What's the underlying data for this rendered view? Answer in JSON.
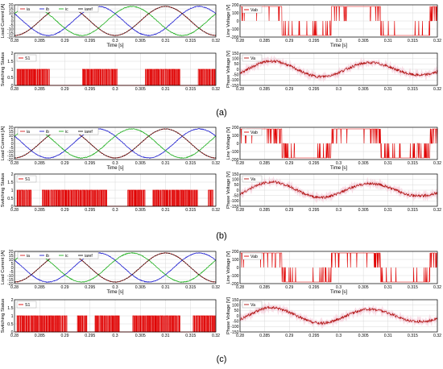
{
  "chart_data": [
    {
      "id": "a-current",
      "type": "line",
      "ylabel": "Load Current [A]",
      "xlabel": "Time [s]",
      "xlim": [
        0.28,
        0.32
      ],
      "ylim": [
        -20,
        20
      ],
      "yticks": [
        "20",
        "15",
        "10",
        "5",
        "0",
        "-5",
        "-10",
        "-15",
        "-20"
      ],
      "xticks": [
        "0.28",
        "0.285",
        "0.29",
        "0.295",
        "0.3",
        "0.305",
        "0.31",
        "0.315",
        "0.32"
      ],
      "legend": [
        "ia",
        "ib",
        "ic",
        "iaref"
      ],
      "legend_position": "top",
      "grid": true,
      "amplitude": 18,
      "frequency_hz": 50,
      "series": [
        {
          "name": "ia",
          "color": "#d62020",
          "phase_deg": 0
        },
        {
          "name": "ib",
          "color": "#2020d0",
          "phase_deg": -120
        },
        {
          "name": "ic",
          "color": "#20b020",
          "phase_deg": 120
        },
        {
          "name": "iaref",
          "color": "#202020",
          "phase_deg": 0
        }
      ]
    },
    {
      "id": "a-vab",
      "type": "line",
      "ylabel": "Line Voltage [V]",
      "xlabel": "Time [s]",
      "xlim": [
        0.28,
        0.32
      ],
      "ylim": [
        -200,
        200
      ],
      "yticks": [
        "200",
        "100",
        "0",
        "-100",
        "-200"
      ],
      "xticks": [
        "0.28",
        "0.285",
        "0.29",
        "0.295",
        "0.3",
        "0.305",
        "0.31",
        "0.315",
        "0.32"
      ],
      "legend": [
        "Vab"
      ],
      "legend_position": "top-left",
      "grid": true,
      "color": "#e00000",
      "levels": [
        -180,
        0,
        180
      ],
      "switching_density": 0.25
    },
    {
      "id": "a-s1",
      "type": "line",
      "ylabel": "Switching Status",
      "xlabel": "",
      "xlim": [
        0.28,
        0.32
      ],
      "ylim": [
        0,
        2
      ],
      "yticks": [
        "2",
        "1.5",
        "1",
        "0.5",
        "0"
      ],
      "xticks": [
        "0.28",
        "0.285",
        "0.29",
        "0.295",
        "0.3",
        "0.305",
        "0.31",
        "0.315",
        "0.32"
      ],
      "legend": [
        "S1"
      ],
      "legend_position": "top-left",
      "grid": true,
      "color": "#e00000",
      "active_intervals": [
        [
          0.2805,
          0.287
        ],
        [
          0.2935,
          0.3005
        ],
        [
          0.306,
          0.313
        ],
        [
          0.3165,
          0.32
        ]
      ]
    },
    {
      "id": "a-va",
      "type": "line",
      "ylabel": "Phase Voltage [V]",
      "xlabel": "",
      "xlim": [
        0.28,
        0.32
      ],
      "ylim": [
        -150,
        150
      ],
      "yticks": [
        "150",
        "100",
        "50",
        "0",
        "-50",
        "-100",
        "-150"
      ],
      "xticks": [
        "0.28",
        "0.285",
        "0.29",
        "0.295",
        "0.3",
        "0.305",
        "0.31",
        "0.315",
        "0.32"
      ],
      "legend": [
        "Va"
      ],
      "legend_position": "top-left",
      "grid": true,
      "color": "#b01010",
      "amplitude": 80
    },
    {
      "id": "b-current",
      "type": "line",
      "ylabel": "Load Current [A]",
      "xlabel": "Time [s]",
      "xlim": [
        0.28,
        0.32
      ],
      "ylim": [
        -20,
        20
      ],
      "yticks": [
        "20",
        "15",
        "10",
        "5",
        "0",
        "-5",
        "-10",
        "-15",
        "-20"
      ],
      "xticks": [
        "0.28",
        "0.285",
        "0.29",
        "0.295",
        "0.3",
        "0.305",
        "0.31",
        "0.315",
        "0.32"
      ],
      "legend": [
        "ia",
        "ib",
        "ic",
        "iaref"
      ],
      "legend_position": "top",
      "grid": true,
      "amplitude": 18,
      "frequency_hz": 50,
      "series": [
        {
          "name": "ia",
          "color": "#d62020",
          "phase_deg": 0
        },
        {
          "name": "ib",
          "color": "#2020d0",
          "phase_deg": -120
        },
        {
          "name": "ic",
          "color": "#20b020",
          "phase_deg": 120
        },
        {
          "name": "iaref",
          "color": "#202020",
          "phase_deg": 0
        }
      ]
    },
    {
      "id": "b-vab",
      "type": "line",
      "ylabel": "Line Voltage [V]",
      "xlabel": "Time [s]",
      "xlim": [
        0.28,
        0.32
      ],
      "ylim": [
        -200,
        200
      ],
      "yticks": [
        "200",
        "100",
        "0",
        "-100",
        "-200"
      ],
      "xticks": [
        "0.28",
        "0.285",
        "0.29",
        "0.295",
        "0.3",
        "0.305",
        "0.31",
        "0.315",
        "0.32"
      ],
      "legend": [
        "Vab"
      ],
      "legend_position": "top-left",
      "grid": true,
      "color": "#e00000",
      "levels": [
        -180,
        0,
        180
      ],
      "switching_density": 0.55
    },
    {
      "id": "b-s1",
      "type": "line",
      "ylabel": "Switching Status",
      "xlabel": "",
      "xlim": [
        0.28,
        0.32
      ],
      "ylim": [
        0,
        2
      ],
      "yticks": [
        "2",
        "1.5",
        "1",
        "0.5",
        "0"
      ],
      "xticks": [
        "0.28",
        "0.285",
        "0.29",
        "0.295",
        "0.3",
        "0.305",
        "0.31",
        "0.315",
        "0.32"
      ],
      "legend": [
        "S1"
      ],
      "legend_position": "top-left",
      "grid": true,
      "color": "#e00000",
      "active_intervals": [
        [
          0.2805,
          0.2835
        ],
        [
          0.2855,
          0.2985
        ],
        [
          0.3025,
          0.306
        ],
        [
          0.3075,
          0.3165
        ],
        [
          0.3185,
          0.3195
        ]
      ]
    },
    {
      "id": "b-va",
      "type": "line",
      "ylabel": "Phase Voltage [V]",
      "xlabel": "",
      "xlim": [
        0.28,
        0.32
      ],
      "ylim": [
        -150,
        150
      ],
      "yticks": [
        "150",
        "100",
        "50",
        "0",
        "-50",
        "-100",
        "-150"
      ],
      "xticks": [
        "0.28",
        "0.285",
        "0.29",
        "0.295",
        "0.3",
        "0.305",
        "0.31",
        "0.315",
        "0.32"
      ],
      "legend": [
        "Va"
      ],
      "legend_position": "top-left",
      "grid": true,
      "color": "#b01010",
      "amplitude": 80
    },
    {
      "id": "c-current",
      "type": "line",
      "ylabel": "Load Current [A]",
      "xlabel": "Time [s]",
      "xlim": [
        0.28,
        0.32
      ],
      "ylim": [
        -20,
        20
      ],
      "yticks": [
        "20",
        "15",
        "10",
        "5",
        "0",
        "-5",
        "-10",
        "-15",
        "-20"
      ],
      "xticks": [
        "0.28",
        "0.285",
        "0.29",
        "0.295",
        "0.3",
        "0.305",
        "0.31",
        "0.315",
        "0.32"
      ],
      "legend": [
        "ia",
        "ib",
        "ic",
        "iaref"
      ],
      "legend_position": "top",
      "grid": true,
      "amplitude": 18,
      "frequency_hz": 50,
      "series": [
        {
          "name": "ia",
          "color": "#d62020",
          "phase_deg": 0
        },
        {
          "name": "ib",
          "color": "#2020d0",
          "phase_deg": -120
        },
        {
          "name": "ic",
          "color": "#20b020",
          "phase_deg": 120
        },
        {
          "name": "iaref",
          "color": "#202020",
          "phase_deg": 0
        }
      ]
    },
    {
      "id": "c-vab",
      "type": "line",
      "ylabel": "Line Voltage [V]",
      "xlabel": "Time [s]",
      "xlim": [
        0.28,
        0.32
      ],
      "ylim": [
        -200,
        200
      ],
      "yticks": [
        "200",
        "100",
        "0",
        "-100",
        "-200"
      ],
      "xticks": [
        "0.28",
        "0.285",
        "0.29",
        "0.295",
        "0.3",
        "0.305",
        "0.31",
        "0.315",
        "0.32"
      ],
      "legend": [
        "Vab"
      ],
      "legend_position": "top-left",
      "grid": true,
      "color": "#e00000",
      "levels": [
        -180,
        0,
        180
      ],
      "switching_density": 0.35
    },
    {
      "id": "c-s1",
      "type": "line",
      "ylabel": "Switching Status",
      "xlabel": "",
      "xlim": [
        0.28,
        0.32
      ],
      "ylim": [
        0,
        2
      ],
      "yticks": [
        "2",
        "1.5",
        "1",
        "0.5",
        "0"
      ],
      "xticks": [
        "0.28",
        "0.285",
        "0.29",
        "0.295",
        "0.3",
        "0.305",
        "0.31",
        "0.315",
        "0.32"
      ],
      "legend": [
        "S1"
      ],
      "legend_position": "top-left",
      "grid": true,
      "color": "#e00000",
      "active_intervals": [
        [
          0.2805,
          0.2905
        ],
        [
          0.2925,
          0.2945
        ],
        [
          0.296,
          0.301
        ],
        [
          0.3035,
          0.313
        ],
        [
          0.3155,
          0.32
        ]
      ]
    },
    {
      "id": "c-va",
      "type": "line",
      "ylabel": "Phase Voltage [V]",
      "xlabel": "",
      "xlim": [
        0.28,
        0.32
      ],
      "ylim": [
        -150,
        150
      ],
      "yticks": [
        "150",
        "100",
        "50",
        "0",
        "-50",
        "-100",
        "-150"
      ],
      "xticks": [
        "0.28",
        "0.285",
        "0.29",
        "0.295",
        "0.3",
        "0.305",
        "0.31",
        "0.315",
        "0.32"
      ],
      "legend": [
        "Va"
      ],
      "legend_position": "top-left",
      "grid": true,
      "color": "#b01010",
      "amplitude": 80
    }
  ],
  "captions": [
    "(a)",
    "(b)",
    "(c)"
  ],
  "colors": {
    "grid": "#d8d8d8",
    "axis": "#000000",
    "background": "#ffffff"
  }
}
